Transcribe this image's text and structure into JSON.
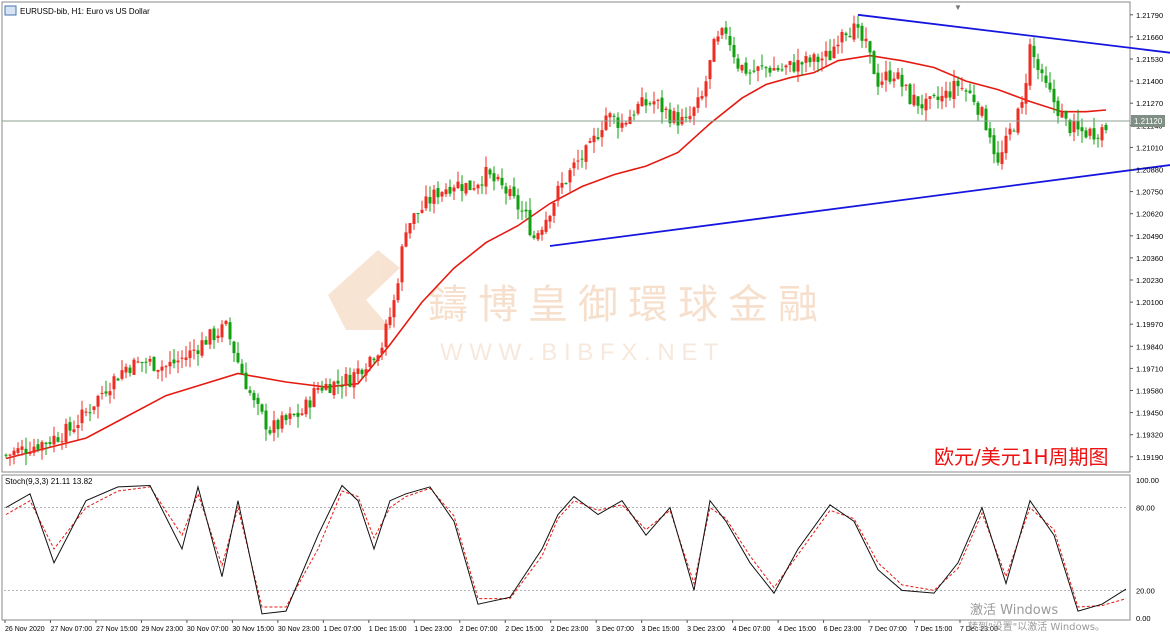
{
  "window": {
    "title": "EURUSD-bib, H1:  Euro vs US Dollar",
    "icon": "chart-window-icon"
  },
  "watermark": {
    "text_cn": "鑄博皇御環球金融",
    "text_en": "W W W . B I B F X . N E T",
    "logo": "bibfx-logo"
  },
  "annotation": "欧元/美元1H周期图",
  "current_price_label": "1.21120",
  "activation": {
    "line1": "激活 Windows",
    "line2": "转到\"设置\"以激活 Windows。"
  },
  "colors": {
    "bull": "#ef2b22",
    "bear": "#10a010",
    "ma": "#e51b12",
    "trendline": "#1515e0",
    "stoch_main": "#111111",
    "stoch_signal": "#e51b12"
  },
  "chart_data": [
    {
      "type": "candlestick",
      "symbol": "EURUSD-bib",
      "timeframe": "H1",
      "y_ticks": [
        "1.21790",
        "1.21660",
        "1.21530",
        "1.21400",
        "1.21270",
        "1.21140",
        "1.21010",
        "1.20880",
        "1.20750",
        "1.20620",
        "1.20490",
        "1.20360",
        "1.20230",
        "1.20100",
        "1.19970",
        "1.19840",
        "1.19710",
        "1.19580",
        "1.19450",
        "1.19320",
        "1.19190"
      ],
      "ylim": [
        1.1913,
        1.2183
      ],
      "x_ticks": [
        "26 Nov 2020",
        "27 Nov 07:00",
        "27 Nov 15:00",
        "29 Nov 23:00",
        "30 Nov 07:00",
        "30 Nov 15:00",
        "30 Nov 23:00",
        "1 Dec 07:00",
        "1 Dec 15:00",
        "1 Dec 23:00",
        "2 Dec 07:00",
        "2 Dec 15:00",
        "2 Dec 23:00",
        "3 Dec 07:00",
        "3 Dec 15:00",
        "3 Dec 23:00",
        "4 Dec 07:00",
        "4 Dec 15:00",
        "6 Dec 23:00",
        "7 Dec 07:00",
        "7 Dec 15:00",
        "7 Dec 23:00"
      ],
      "close_path": [
        [
          0,
          1.192
        ],
        [
          6,
          1.1925
        ],
        [
          10,
          1.1928
        ],
        [
          16,
          1.1935
        ],
        [
          20,
          1.1945
        ],
        [
          25,
          1.196
        ],
        [
          30,
          1.1972
        ],
        [
          35,
          1.1975
        ],
        [
          40,
          1.1972
        ],
        [
          45,
          1.1978
        ],
        [
          50,
          1.1988
        ],
        [
          55,
          1.1995
        ],
        [
          58,
          1.1975
        ],
        [
          62,
          1.195
        ],
        [
          66,
          1.1935
        ],
        [
          70,
          1.194
        ],
        [
          74,
          1.1945
        ],
        [
          78,
          1.196
        ],
        [
          82,
          1.1962
        ],
        [
          86,
          1.1965
        ],
        [
          90,
          1.1975
        ],
        [
          94,
          1.1985
        ],
        [
          97,
          1.201
        ],
        [
          100,
          1.2055
        ],
        [
          104,
          1.2065
        ],
        [
          108,
          1.2075
        ],
        [
          112,
          1.208
        ],
        [
          116,
          1.2078
        ],
        [
          120,
          1.2085
        ],
        [
          125,
          1.2075
        ],
        [
          130,
          1.206
        ],
        [
          132,
          1.2048
        ],
        [
          135,
          1.206
        ],
        [
          138,
          1.2075
        ],
        [
          142,
          1.209
        ],
        [
          146,
          1.21
        ],
        [
          150,
          1.212
        ],
        [
          154,
          1.2115
        ],
        [
          158,
          1.2125
        ],
        [
          162,
          1.2128
        ],
        [
          166,
          1.212
        ],
        [
          170,
          1.2115
        ],
        [
          174,
          1.213
        ],
        [
          177,
          1.216
        ],
        [
          180,
          1.217
        ],
        [
          183,
          1.215
        ],
        [
          186,
          1.2145
        ],
        [
          190,
          1.2148
        ],
        [
          194,
          1.2147
        ],
        [
          198,
          1.215
        ],
        [
          202,
          1.2152
        ],
        [
          206,
          1.2155
        ],
        [
          209,
          1.2172
        ],
        [
          212,
          1.217
        ],
        [
          215,
          1.216
        ],
        [
          218,
          1.214
        ],
        [
          222,
          1.2145
        ],
        [
          226,
          1.213
        ],
        [
          230,
          1.2125
        ],
        [
          234,
          1.213
        ],
        [
          238,
          1.2138
        ],
        [
          242,
          1.213
        ],
        [
          246,
          1.211
        ],
        [
          248,
          1.209
        ],
        [
          251,
          1.211
        ],
        [
          254,
          1.2125
        ],
        [
          256,
          1.216
        ],
        [
          259,
          1.214
        ],
        [
          262,
          1.2128
        ],
        [
          265,
          1.2115
        ],
        [
          268,
          1.211
        ],
        [
          272,
          1.211
        ],
        [
          275,
          1.2113
        ]
      ],
      "series": [
        {
          "name": "MA",
          "x": [
            0,
            20,
            40,
            58,
            70,
            80,
            88,
            96,
            104,
            112,
            120,
            128,
            136,
            144,
            152,
            160,
            168,
            176,
            184,
            190,
            196,
            202,
            208,
            216,
            224,
            232,
            240,
            248,
            256,
            264,
            270,
            275
          ],
          "y": [
            1.1918,
            1.193,
            1.1955,
            1.1968,
            1.1963,
            1.196,
            1.1962,
            1.1985,
            1.201,
            1.203,
            1.2045,
            1.2055,
            1.2068,
            1.2078,
            1.2085,
            1.209,
            1.2098,
            1.2115,
            1.213,
            1.2138,
            1.2142,
            1.2145,
            1.2152,
            1.2155,
            1.2152,
            1.2148,
            1.214,
            1.2135,
            1.2128,
            1.2122,
            1.2122,
            1.2123
          ]
        }
      ],
      "trendlines": [
        {
          "name": "upper",
          "from": [
            213,
            1.2179
          ],
          "to": [
            297,
            1.2155
          ]
        },
        {
          "name": "lower",
          "from": [
            136,
            1.2043
          ],
          "to": [
            302,
            1.2094
          ]
        }
      ],
      "current_price": 1.2112
    },
    {
      "type": "line",
      "title": "Stoch(9,3,3) 21.11 13.82",
      "y_ticks": [
        "100.00",
        "80.00",
        "20.00",
        "0.00"
      ],
      "ylim": [
        0,
        100
      ],
      "levels": [
        20,
        80
      ],
      "series": [
        {
          "name": "main",
          "x": [
            0,
            6,
            12,
            20,
            28,
            36,
            44,
            48,
            54,
            58,
            64,
            70,
            78,
            84,
            88,
            92,
            96,
            100,
            106,
            112,
            118,
            126,
            134,
            138,
            142,
            148,
            154,
            160,
            166,
            172,
            176,
            180,
            186,
            192,
            198,
            206,
            212,
            218,
            224,
            232,
            238,
            244,
            250,
            256,
            262,
            268,
            274,
            280
          ],
          "y": [
            80,
            90,
            40,
            85,
            95,
            96,
            50,
            95,
            30,
            85,
            3,
            5,
            60,
            96,
            85,
            50,
            85,
            90,
            95,
            70,
            10,
            15,
            50,
            75,
            88,
            75,
            85,
            60,
            80,
            20,
            85,
            70,
            40,
            18,
            50,
            82,
            70,
            35,
            20,
            18,
            40,
            80,
            25,
            85,
            60,
            5,
            10,
            21
          ]
        },
        {
          "name": "signal",
          "x": [
            0,
            6,
            12,
            20,
            28,
            36,
            44,
            48,
            54,
            58,
            64,
            70,
            78,
            84,
            88,
            92,
            96,
            100,
            106,
            112,
            118,
            126,
            134,
            138,
            142,
            148,
            154,
            160,
            166,
            172,
            176,
            180,
            186,
            192,
            198,
            206,
            212,
            218,
            224,
            232,
            238,
            244,
            250,
            256,
            262,
            268,
            274,
            280
          ],
          "y": [
            75,
            85,
            50,
            80,
            92,
            95,
            60,
            90,
            38,
            80,
            8,
            8,
            50,
            92,
            88,
            58,
            80,
            88,
            94,
            74,
            14,
            14,
            45,
            72,
            85,
            78,
            82,
            64,
            78,
            25,
            80,
            72,
            45,
            22,
            46,
            78,
            72,
            40,
            24,
            20,
            36,
            76,
            30,
            80,
            64,
            8,
            9,
            14
          ]
        }
      ]
    }
  ]
}
